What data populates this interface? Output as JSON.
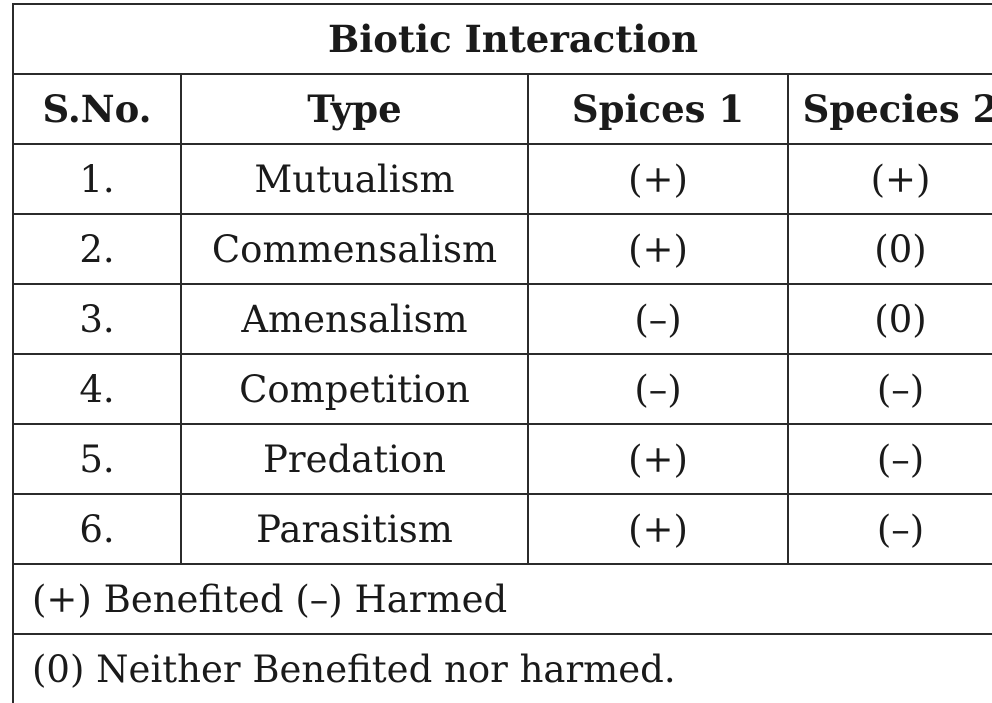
{
  "table": {
    "title": "Biotic Interaction",
    "headers": {
      "sno": "S.No.",
      "type": "Type",
      "species1": "Spices 1",
      "species2": "Species 2"
    },
    "rows": [
      {
        "sno": "1.",
        "type": "Mutualism",
        "species1": "(+)",
        "species2": "(+)"
      },
      {
        "sno": "2.",
        "type": "Commensalism",
        "species1": "(+)",
        "species2": "(0)"
      },
      {
        "sno": "3.",
        "type": "Amensalism",
        "species1": "(–)",
        "species2": "(0)"
      },
      {
        "sno": "4.",
        "type": "Competition",
        "species1": "(–)",
        "species2": "(–)"
      },
      {
        "sno": "5.",
        "type": "Predation",
        "species1": "(+)",
        "species2": "(–)"
      },
      {
        "sno": "6.",
        "type": "Parasitism",
        "species1": "(+)",
        "species2": "(–)"
      }
    ],
    "legend": [
      "(+) Benefited (–) Harmed",
      "(0) Neither Benefited nor harmed."
    ]
  }
}
